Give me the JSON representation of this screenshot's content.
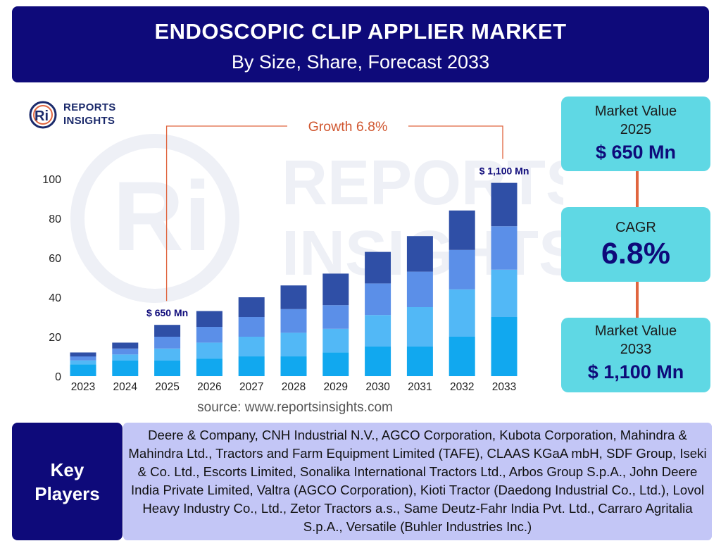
{
  "header": {
    "title": "ENDOSCOPIC CLIP APPLIER MARKET",
    "subtitle": "By Size, Share, Forecast 2033"
  },
  "logo": {
    "line1": "REPORTS",
    "line2": "INSIGHTS",
    "mark": "Ri"
  },
  "watermark": {
    "mark": "Ri",
    "line1": "REPORTS",
    "line2": "INSIGHTS"
  },
  "chart_data": {
    "type": "bar",
    "stacked": true,
    "categories": [
      "2023",
      "2024",
      "2025",
      "2026",
      "2027",
      "2028",
      "2029",
      "2030",
      "2031",
      "2032",
      "2033"
    ],
    "series": [
      {
        "values": [
          6,
          8,
          8,
          9,
          10,
          10,
          12,
          15,
          15,
          20,
          30
        ]
      },
      {
        "values": [
          2,
          3,
          6,
          8,
          10,
          12,
          12,
          16,
          20,
          24,
          24
        ]
      },
      {
        "values": [
          2,
          3,
          6,
          8,
          10,
          12,
          12,
          16,
          18,
          20,
          22
        ]
      },
      {
        "values": [
          2,
          3,
          6,
          8,
          10,
          12,
          16,
          16,
          18,
          20,
          22
        ]
      }
    ],
    "colors": [
      "#11a8ef",
      "#52b8f6",
      "#5b8fe8",
      "#2f4fa6"
    ],
    "ylim": [
      0,
      100
    ],
    "yticks": [
      0,
      20,
      40,
      60,
      80,
      100
    ],
    "grid": false,
    "annotations": {
      "start_label": "$ 650 Mn",
      "end_label": "$ 1,100 Mn",
      "growth_label": "Growth",
      "growth_value": "6.8%",
      "start_category": "2025",
      "end_category": "2033"
    }
  },
  "source": "source: www.reportsinsights.com",
  "stats": {
    "market_value_2025": {
      "label": "Market Value 2025",
      "value": "$ 650 Mn"
    },
    "cagr": {
      "label": "CAGR",
      "value": "6.8%"
    },
    "market_value_2033": {
      "label": "Market Value 2033",
      "value": "$ 1,100 Mn"
    }
  },
  "colors": {
    "header_bg": "#0e0a7a",
    "stat_bg": "#5fd8e4",
    "connector": "#e0653f",
    "players_bg": "#c3c6f6"
  },
  "key_players": {
    "heading": "Key\nPlayers",
    "text": "Deere & Company, CNH Industrial N.V., AGCO Corporation, Kubota Corporation, Mahindra & Mahindra Ltd., Tractors and Farm Equipment Limited (TAFE), CLAAS KGaA mbH, SDF Group, Iseki & Co. Ltd., Escorts Limited, Sonalika International Tractors Ltd., Arbos Group S.p.A., John Deere India Private Limited, Valtra (AGCO Corporation), Kioti Tractor (Daedong Industrial Co., Ltd.), Lovol Heavy Industry Co., Ltd., Zetor Tractors a.s., Same Deutz-Fahr India Pvt. Ltd., Carraro Agritalia S.p.A., Versatile (Buhler Industries Inc.)"
  }
}
